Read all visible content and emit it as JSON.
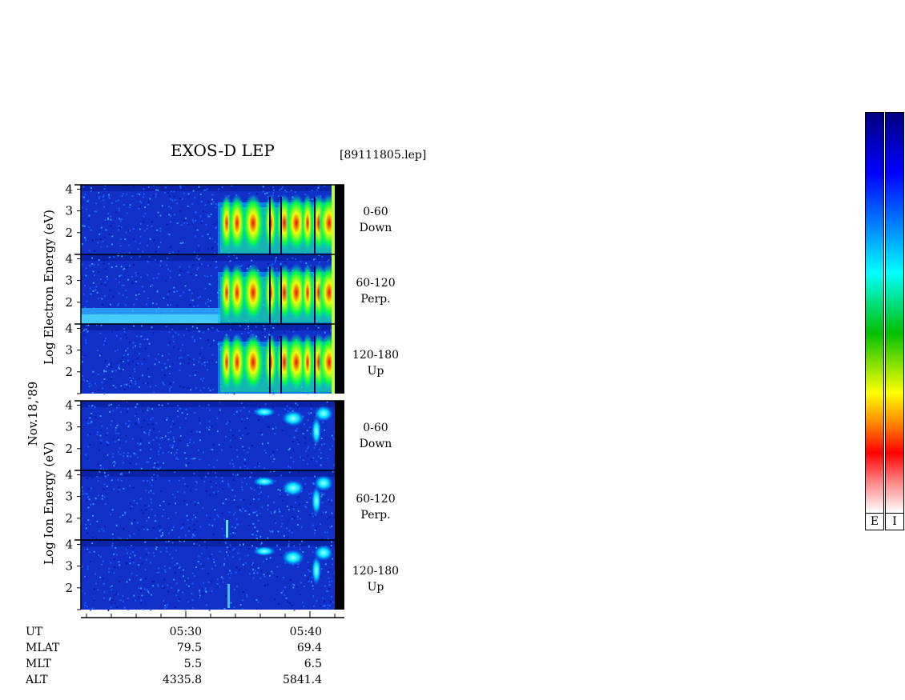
{
  "title": "EXOS-D LEP",
  "filename": "[89111805.lep]",
  "date_label": "Nov.18,'89",
  "electron_axis_label": "Log   Electron   Energy (eV)",
  "ion_axis_label": "Log   Ion   Energy (eV)",
  "electron_panels": [
    {
      "angle": "0-60",
      "dir": "Down"
    },
    {
      "angle": "60-120",
      "dir": "Perp."
    },
    {
      "angle": "120-180",
      "dir": "Up"
    }
  ],
  "ion_panels": [
    {
      "angle": "0-60",
      "dir": "Down"
    },
    {
      "angle": "60-120",
      "dir": "Perp."
    },
    {
      "angle": "120-180",
      "dir": "Up"
    }
  ],
  "ephemeris": {
    "rows": [
      {
        "name": "UT",
        "values": [
          "05:30",
          "05:40"
        ]
      },
      {
        "name": "MLAT",
        "values": [
          "79.5",
          "69.4"
        ]
      },
      {
        "name": "MLT",
        "values": [
          "5.5",
          "6.5"
        ]
      },
      {
        "name": "ALT",
        "values": [
          "4335.8",
          "5841.4"
        ]
      }
    ]
  },
  "colorbar_labels": [
    "E",
    "I"
  ],
  "colors": {
    "bg_blue": "#1030c8",
    "colorbar_stops": [
      "#ffffff",
      "#ff8080",
      "#ff0000",
      "#ff8000",
      "#ffff00",
      "#00c000",
      "#00ffff",
      "#0080ff",
      "#0000ff",
      "#000080"
    ]
  },
  "chart_data": {
    "type": "heatmap",
    "title": "EXOS-D LEP",
    "subtitle": "[89111805.lep]",
    "ylabel": "Log Energy (eV)",
    "yticks": [
      2,
      3,
      4
    ],
    "x_ticks": [
      "05:30",
      "05:40"
    ],
    "panels": [
      {
        "species": "Electron",
        "pitch": "0-60",
        "dir": "Down",
        "onset_ut": "05:33.5",
        "intensity": "high"
      },
      {
        "species": "Electron",
        "pitch": "60-120",
        "dir": "Perp.",
        "onset_ut": "05:33.5",
        "intensity": "high"
      },
      {
        "species": "Electron",
        "pitch": "120-180",
        "dir": "Up",
        "onset_ut": "05:33.5",
        "intensity": "high"
      },
      {
        "species": "Ion",
        "pitch": "0-60",
        "dir": "Down",
        "onset_ut": "05:38",
        "intensity": "moderate"
      },
      {
        "species": "Ion",
        "pitch": "60-120",
        "dir": "Perp.",
        "onset_ut": "05:38",
        "intensity": "moderate"
      },
      {
        "species": "Ion",
        "pitch": "120-180",
        "dir": "Up",
        "onset_ut": "05:38",
        "intensity": "moderate"
      }
    ]
  }
}
